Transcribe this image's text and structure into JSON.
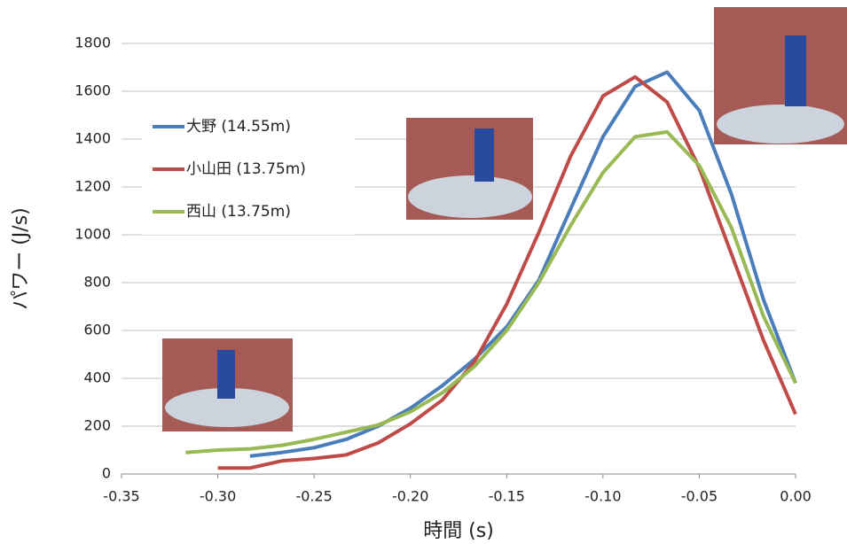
{
  "chart_data": {
    "type": "line",
    "xlabel": "時間 (s)",
    "ylabel": "パワー (J/s)",
    "x": [
      -0.3167,
      -0.3,
      -0.2833,
      -0.2667,
      -0.25,
      -0.2333,
      -0.2167,
      -0.2,
      -0.1833,
      -0.1667,
      -0.15,
      -0.1333,
      -0.1167,
      -0.1,
      -0.0833,
      -0.0667,
      -0.05,
      -0.0333,
      -0.0167,
      0
    ],
    "series": [
      {
        "name": "大野 (14.55m)",
        "color": "#4a7ebb",
        "values": [
          null,
          null,
          75,
          90,
          110,
          145,
          200,
          275,
          370,
          480,
          615,
          810,
          1110,
          1410,
          1620,
          1680,
          1520,
          1170,
          730,
          380
        ]
      },
      {
        "name": "小山田 (13.75m)",
        "color": "#be4b48",
        "values": [
          null,
          25,
          25,
          55,
          65,
          80,
          130,
          210,
          310,
          470,
          710,
          1010,
          1330,
          1580,
          1660,
          1555,
          1280,
          920,
          560,
          250
        ]
      },
      {
        "name": "西山 (13.75m)",
        "color": "#98b954",
        "values": [
          90,
          100,
          105,
          120,
          145,
          175,
          205,
          260,
          340,
          450,
          600,
          800,
          1040,
          1260,
          1410,
          1430,
          1290,
          1030,
          660,
          380
        ]
      }
    ],
    "xlim": [
      -0.35,
      0
    ],
    "xticks": [
      -0.35,
      {
        "value": -0.3,
        "label": "-0.30"
      },
      -0.25,
      {
        "value": -0.2,
        "label": "-0.20"
      },
      -0.15,
      {
        "value": -0.1,
        "label": "-0.10"
      },
      -0.05,
      {
        "value": 0,
        "label": "0.00"
      }
    ],
    "ylim": [
      0,
      1800
    ],
    "yticks": [
      0,
      200,
      400,
      600,
      800,
      1000,
      1200,
      1400,
      1600,
      1800
    ],
    "grid": true,
    "legend": "upper-left"
  }
}
